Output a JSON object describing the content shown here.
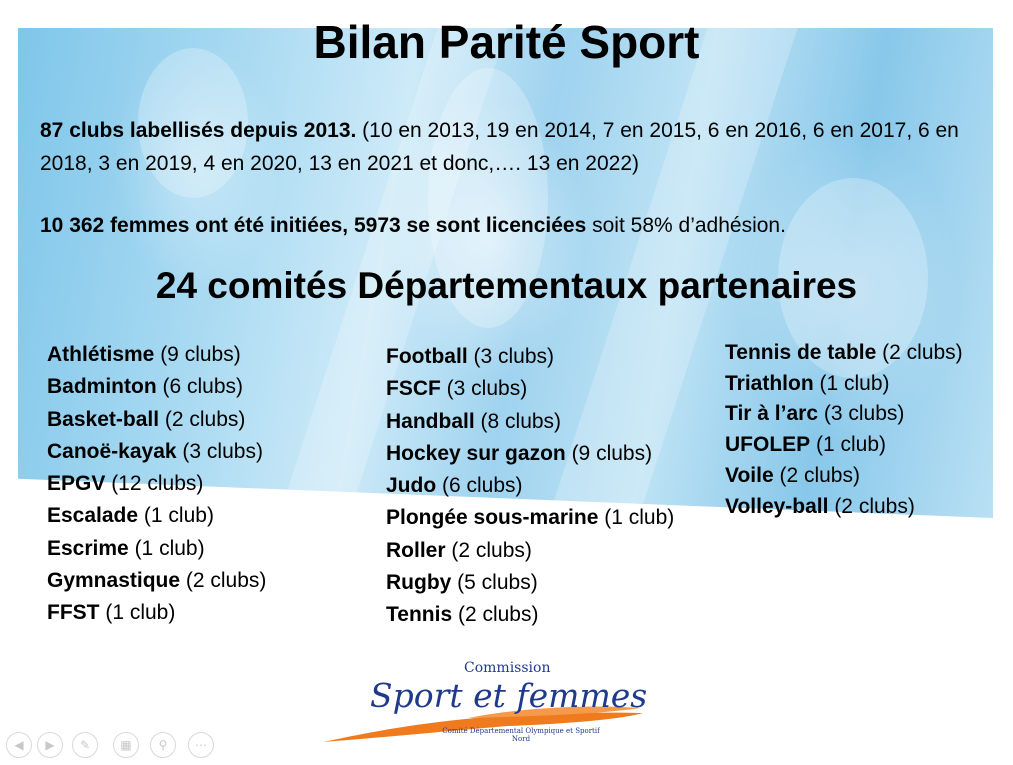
{
  "title": "Bilan Parité Sport",
  "intro": {
    "bold": "87 clubs labellisés depuis 2013.",
    "text": " (10 en 2013, 19 en 2014, 7 en 2015, 6 en 2016, 6 en 2017, 6 en 2018, 3 en 2019, 4 en 2020, 13 en 2021 et donc,…. 13 en 2022)"
  },
  "stats": {
    "bold": "10 362 femmes ont été initiées, 5973 se sont licenciées",
    "text": " soit 58% d’adhésion."
  },
  "subtitle": "24 comités Départementaux partenaires",
  "columns": [
    [
      {
        "sport": "Athlétisme",
        "clubs": " (9 clubs)"
      },
      {
        "sport": "Badminton",
        "clubs": " (6 clubs)"
      },
      {
        "sport": "Basket-ball",
        "clubs": " (2 clubs)"
      },
      {
        "sport": "Canoë-kayak",
        "clubs": " (3 clubs)"
      },
      {
        "sport": "EPGV",
        "clubs": " (12 clubs)"
      },
      {
        "sport": "Escalade",
        "clubs": " (1 club)"
      },
      {
        "sport": "Escrime",
        "clubs": " (1 club)"
      },
      {
        "sport": "Gymnastique",
        "clubs": " (2 clubs)"
      },
      {
        "sport": "FFST",
        "clubs": " (1 club)"
      }
    ],
    [
      {
        "sport": "Football",
        "clubs": " (3 clubs)"
      },
      {
        "sport": "FSCF",
        "clubs": " (3 clubs)"
      },
      {
        "sport": "Handball",
        "clubs": " (8 clubs)"
      },
      {
        "sport": "Hockey sur gazon",
        "clubs": " (9 clubs)"
      },
      {
        "sport": "Judo",
        "clubs": " (6 clubs)"
      },
      {
        "sport": "Plongée sous-marine",
        "clubs": " (1 club)"
      },
      {
        "sport": "Roller",
        "clubs": " (2 clubs)"
      },
      {
        "sport": "Rugby",
        "clubs": " (5 clubs)"
      },
      {
        "sport": "Tennis",
        "clubs": " (2 clubs)"
      }
    ],
    [
      {
        "sport": "Tennis de table",
        "clubs": " (2 clubs)"
      },
      {
        "sport": "Triathlon",
        "clubs": " (1 club)"
      },
      {
        "sport": "Tir à l’arc",
        "clubs": " (3 clubs)"
      },
      {
        "sport": "UFOLEP",
        "clubs": " (1 club)"
      },
      {
        "sport": "Voile",
        "clubs": " (2 clubs)"
      },
      {
        "sport": "Volley-ball",
        "clubs": " (2 clubs)"
      }
    ]
  ],
  "logo": {
    "commission": "Commission",
    "script": "Sport et femmes",
    "line1": "Comité Départemental Olympique et Sportif",
    "line2": "Nord"
  },
  "controls": [
    "previous-icon",
    "next-icon",
    "pen-icon",
    "slides-icon",
    "zoom-icon",
    "more-icon"
  ],
  "colors": {
    "logo_blue": "#1f3a8a",
    "logo_orange": "#f07a1e"
  }
}
